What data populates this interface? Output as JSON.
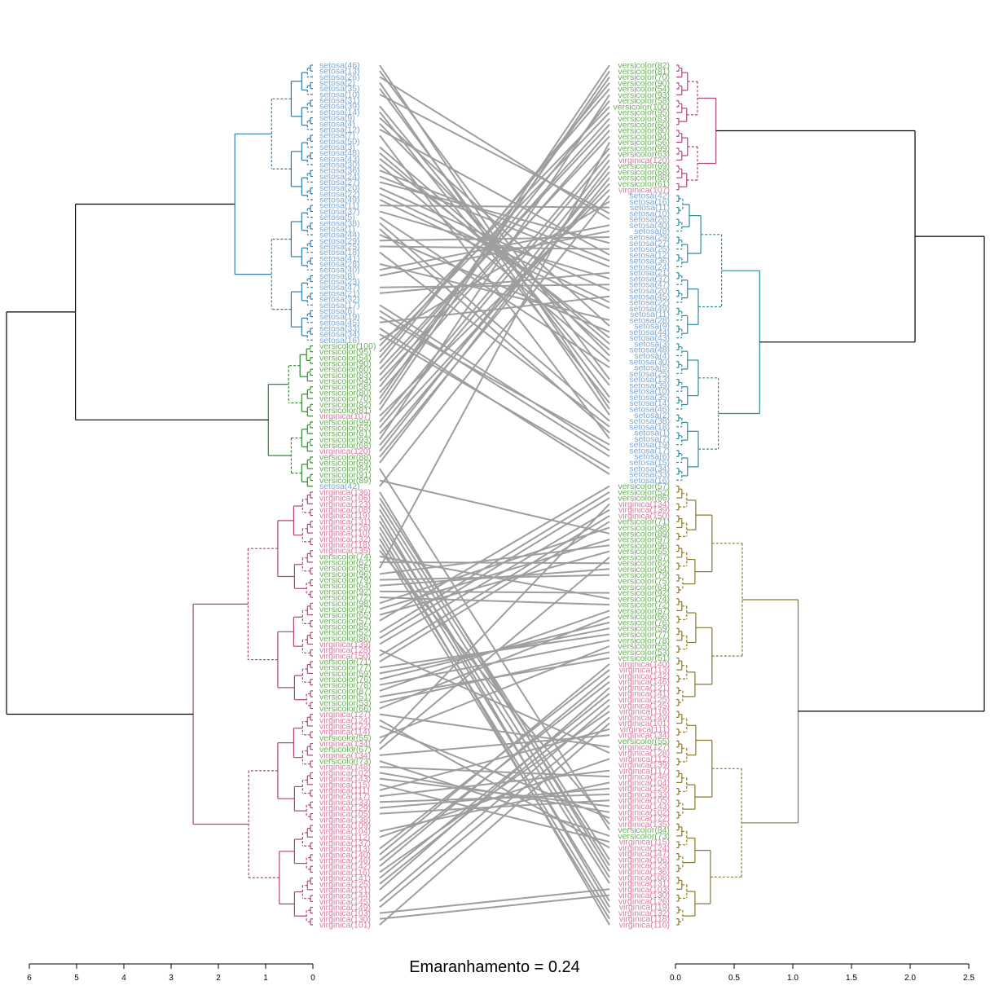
{
  "chart_data": {
    "type": "tanglegram",
    "title": "Emaranhamento = 0.24",
    "colors": {
      "setosa": "#7FA7CF",
      "versicolor": "#6BAF5A",
      "virginica": "#D97BA0",
      "connector": "#9E9E9E",
      "branch_blue": "#2E7DB0",
      "branch_green": "#2E8B2E",
      "branch_magenta": "#B0457A",
      "branch_black": "#000000"
    },
    "left_axis": {
      "ticks": [
        "6",
        "5",
        "4",
        "3",
        "2",
        "1",
        "0"
      ],
      "range": [
        6,
        0
      ]
    },
    "right_axis": {
      "ticks": [
        "0.0",
        "0.5",
        "1.0",
        "1.5",
        "2.0",
        "2.5"
      ],
      "range": [
        0,
        2.5
      ]
    },
    "left_labels": [
      "setosa(46)",
      "setosa(13)",
      "setosa(26)",
      "setosa(2)",
      "setosa(35)",
      "setosa(10)",
      "setosa(31)",
      "setosa(39)",
      "setosa(14)",
      "setosa(9)",
      "setosa(4)",
      "setosa(12)",
      "setosa(7)",
      "setosa(50)",
      "setosa(3)",
      "setosa(48)",
      "setosa(43)",
      "setosa(30)",
      "setosa(36)",
      "setosa(24)",
      "setosa(27)",
      "setosa(20)",
      "setosa(22)",
      "setosa(49)",
      "setosa(11)",
      "setosa(37)",
      "setosa(5)",
      "setosa(38)",
      "setosa(1)",
      "setosa(44)",
      "setosa(29)",
      "setosa(25)",
      "setosa(18)",
      "setosa(41)",
      "setosa(28)",
      "setosa(40)",
      "setosa(8)",
      "setosa(23)",
      "setosa(47)",
      "setosa(21)",
      "setosa(32)",
      "setosa(17)",
      "setosa(6)",
      "setosa(19)",
      "setosa(45)",
      "setosa(33)",
      "setosa(34)",
      "setosa(16)",
      "versicolor(100)",
      "versicolor(95)",
      "versicolor(54)",
      "versicolor(90)",
      "versicolor(60)",
      "versicolor(83)",
      "versicolor(94)",
      "versicolor(58)",
      "versicolor(80)",
      "versicolor(70)",
      "versicolor(82)",
      "versicolor(81)",
      "virginica(107)",
      "versicolor(99)",
      "versicolor(63)",
      "versicolor(61)",
      "versicolor(93)",
      "versicolor(68)",
      "virginica(120)",
      "versicolor(88)",
      "versicolor(69)",
      "versicolor(84)",
      "versicolor(91)",
      "versicolor(89)",
      "setosa(42)",
      "virginica(136)",
      "virginica(106)",
      "virginica(123)",
      "virginica(108)",
      "virginica(119)",
      "virginica(131)",
      "virginica(126)",
      "virginica(110)",
      "virginica(132)",
      "virginica(118)",
      "virginica(135)",
      "versicolor(74)",
      "versicolor(62)",
      "versicolor(56)",
      "versicolor(96)",
      "versicolor(79)",
      "versicolor(64)",
      "versicolor(92)",
      "versicolor(72)",
      "versicolor(98)",
      "versicolor(97)",
      "versicolor(65)",
      "versicolor(57)",
      "versicolor(85)",
      "versicolor(52)",
      "versicolor(86)",
      "virginica(139)",
      "virginica(128)",
      "virginica(150)",
      "versicolor(71)",
      "versicolor(77)",
      "versicolor(59)",
      "versicolor(76)",
      "versicolor(78)",
      "versicolor(87)",
      "versicolor(51)",
      "versicolor(53)",
      "versicolor(66)",
      "virginica(127)",
      "virginica(124)",
      "virginica(122)",
      "virginica(114)",
      "versicolor(55)",
      "virginica(134)",
      "versicolor(67)",
      "virginica(134)",
      "versicolor(73)",
      "virginica(148)",
      "virginica(102)",
      "virginica(143)",
      "virginica(115)",
      "virginica(111)",
      "virginica(117)",
      "virginica(133)",
      "virginica(129)",
      "virginica(105)",
      "virginica(138)",
      "virginica(109)",
      "virginica(104)",
      "virginica(112)",
      "virginica(137)",
      "virginica(113)",
      "virginica(140)",
      "virginica(146)",
      "virginica(142)",
      "virginica(116)",
      "virginica(141)",
      "virginica(125)",
      "virginica(121)",
      "virginica(144)",
      "virginica(145)",
      "virginica(149)",
      "virginica(103)",
      "virginica(130)",
      "virginica(101)"
    ],
    "right_labels": [
      "versicolor(82)",
      "versicolor(81)",
      "versicolor(70)",
      "versicolor(90)",
      "versicolor(54)",
      "versicolor(93)",
      "versicolor(58)",
      "versicolor(100)",
      "versicolor(95)",
      "versicolor(83)",
      "versicolor(60)",
      "versicolor(80)",
      "versicolor(94)",
      "versicolor(56)",
      "versicolor(99)",
      "versicolor(63)",
      "virginica(120)",
      "versicolor(69)",
      "versicolor(68)",
      "versicolor(88)",
      "versicolor(61)",
      "virginica(107)",
      "setosa(42)",
      "setosa(16)",
      "setosa(11)",
      "setosa(10)",
      "setosa(26)",
      "setosa(40)",
      "setosa(8)",
      "setosa(29)",
      "setosa(27)",
      "setosa(25)",
      "setosa(12)",
      "setosa(36)",
      "setosa(24)",
      "setosa(21)",
      "setosa(37)",
      "setosa(47)",
      "setosa(20)",
      "setosa(45)",
      "setosa(22)",
      "setosa(49)",
      "setosa(11)",
      "setosa(28)",
      "setosa(9)",
      "setosa(44)",
      "setosa(43)",
      "setosa(3)",
      "setosa(48)",
      "setosa(4)",
      "setosa(30)",
      "setosa(5)",
      "setosa(25)",
      "setosa(13)",
      "setosa(39)",
      "setosa(10)",
      "setosa(35)",
      "setosa(14)",
      "setosa(46)",
      "setosa(2)",
      "setosa(38)",
      "setosa(18)",
      "setosa(1)",
      "setosa(7)",
      "setosa(19)",
      "setosa(17)",
      "setosa(6)",
      "setosa(15)",
      "setosa(34)",
      "setosa(33)",
      "setosa(16)",
      "versicolor(57)",
      "versicolor(52)",
      "versicolor(86)",
      "virginica(134)",
      "virginica(139)",
      "virginica(150)",
      "versicolor(71)",
      "versicolor(98)",
      "versicolor(89)",
      "versicolor(97)",
      "versicolor(96)",
      "versicolor(65)",
      "versicolor(67)",
      "versicolor(62)",
      "versicolor(64)",
      "versicolor(79)",
      "versicolor(75)",
      "versicolor(64)",
      "versicolor(92)",
      "versicolor(74)",
      "versicolor(72)",
      "versicolor(87)",
      "versicolor(66)",
      "versicolor(76)",
      "versicolor(59)",
      "versicolor(77)",
      "versicolor(78)",
      "versicolor(55)",
      "versicolor(53)",
      "versicolor(51)",
      "virginica(140)",
      "virginica(113)",
      "virginica(142)",
      "virginica(146)",
      "virginica(121)",
      "virginica(141)",
      "virginica(125)",
      "virginica(145)",
      "virginica(116)",
      "virginica(149)",
      "virginica(101)",
      "virginica(111)",
      "virginica(134)",
      "versicolor(55)",
      "virginica(127)",
      "virginica(128)",
      "virginica(112)",
      "virginica(139)",
      "virginica(117)",
      "virginica(148)",
      "virginica(104)",
      "virginica(129)",
      "virginica(133)",
      "virginica(105)",
      "virginica(143)",
      "virginica(102)",
      "virginica(122)",
      "virginica(135)",
      "versicolor(84)",
      "versicolor(73)",
      "virginica(115)",
      "virginica(124)",
      "virginica(147)",
      "virginica(106)",
      "virginica(123)",
      "virginica(136)",
      "virginica(108)",
      "virginica(131)",
      "virginica(103)",
      "virginica(130)",
      "virginica(126)",
      "virginica(119)",
      "virginica(132)",
      "virginica(118)",
      "virginica(110)"
    ]
  }
}
